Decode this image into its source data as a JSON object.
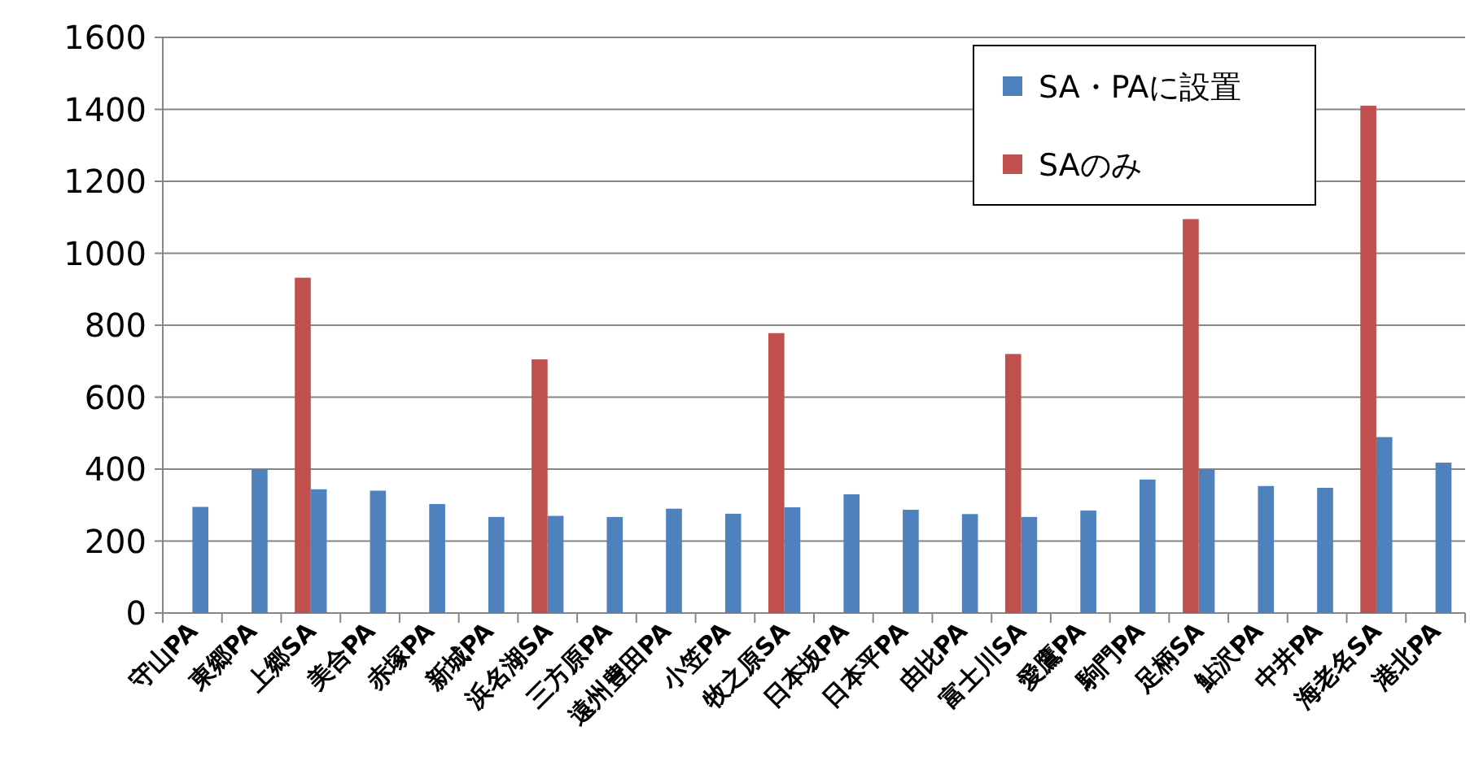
{
  "chart_data": {
    "type": "bar",
    "categories": [
      "守山PA",
      "東郷PA",
      "上郷SA",
      "美合PA",
      "赤塚PA",
      "新城PA",
      "浜名湖SA",
      "三方原PA",
      "遠州豊田PA",
      "小笠PA",
      "牧之原SA",
      "日本坂PA",
      "日本平PA",
      "由比PA",
      "富士川SA",
      "愛鷹PA",
      "駒門PA",
      "足柄SA",
      "鮎沢PA",
      "中井PA",
      "海老名SA",
      "港北PA"
    ],
    "series": [
      {
        "name": "SA・PAに設置",
        "color": "#4f81bd",
        "values": [
          295,
          400,
          344,
          340,
          303,
          267,
          270,
          267,
          290,
          276,
          294,
          330,
          287,
          275,
          267,
          285,
          371,
          400,
          353,
          348,
          489,
          418
        ]
      },
      {
        "name": "SAのみ",
        "color": "#c0504d",
        "values": [
          null,
          null,
          932,
          null,
          null,
          null,
          705,
          null,
          null,
          null,
          778,
          null,
          null,
          null,
          720,
          null,
          null,
          1095,
          null,
          null,
          1410,
          null
        ]
      }
    ],
    "ylim": [
      0,
      1600
    ],
    "yticks": [
      0,
      200,
      400,
      600,
      800,
      1000,
      1200,
      1400,
      1600
    ],
    "grid": "y",
    "legend": "top right"
  }
}
